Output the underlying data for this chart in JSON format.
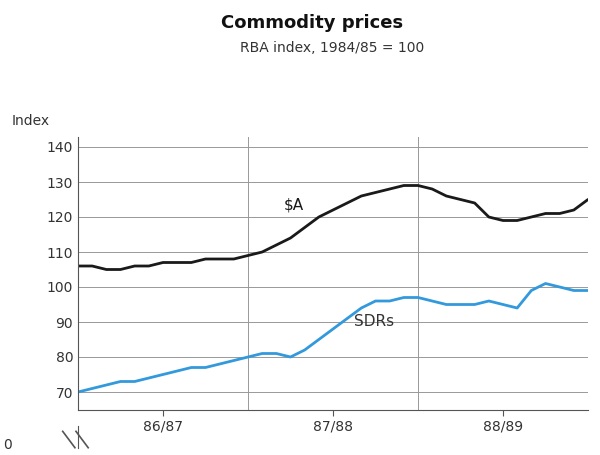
{
  "title": "Commodity prices",
  "subtitle": "RBA index, 1984/85 = 100",
  "ylabel": "Index",
  "ylim": [
    60,
    145
  ],
  "yticks": [
    70,
    80,
    90,
    100,
    110,
    120,
    130,
    140
  ],
  "ytick_labels": [
    "70",
    "80",
    "90",
    "100",
    "110",
    "120",
    "130",
    "140"
  ],
  "y0_label": "0",
  "xtick_labels": [
    "86/87",
    "87/88",
    "88/89"
  ],
  "background_color": "#ffffff",
  "grid_color": "#999999",
  "sa_color": "#1a1a1a",
  "sdr_color": "#3399dd",
  "sdr_label": "SDRs",
  "sa_x": [
    0,
    1,
    2,
    3,
    4,
    5,
    6,
    7,
    8,
    9,
    10,
    11,
    12,
    13,
    14,
    15,
    16,
    17,
    18,
    19,
    20,
    21,
    22,
    23,
    24,
    25,
    26,
    27,
    28,
    29,
    30,
    31,
    32,
    33,
    34,
    35,
    36
  ],
  "sa_y": [
    106,
    106,
    105,
    105,
    106,
    106,
    107,
    107,
    107,
    108,
    108,
    108,
    109,
    110,
    112,
    114,
    117,
    120,
    122,
    124,
    126,
    127,
    128,
    129,
    129,
    128,
    126,
    125,
    124,
    120,
    119,
    119,
    120,
    121,
    121,
    122,
    125
  ],
  "sdr_x": [
    0,
    1,
    2,
    3,
    4,
    5,
    6,
    7,
    8,
    9,
    10,
    11,
    12,
    13,
    14,
    15,
    16,
    17,
    18,
    19,
    20,
    21,
    22,
    23,
    24,
    25,
    26,
    27,
    28,
    29,
    30,
    31,
    32,
    33,
    34,
    35,
    36
  ],
  "sdr_y": [
    70,
    71,
    72,
    73,
    73,
    74,
    75,
    76,
    77,
    77,
    78,
    79,
    80,
    81,
    81,
    80,
    82,
    85,
    88,
    91,
    94,
    96,
    96,
    97,
    97,
    96,
    95,
    95,
    95,
    96,
    95,
    94,
    99,
    101,
    100,
    99,
    99
  ]
}
